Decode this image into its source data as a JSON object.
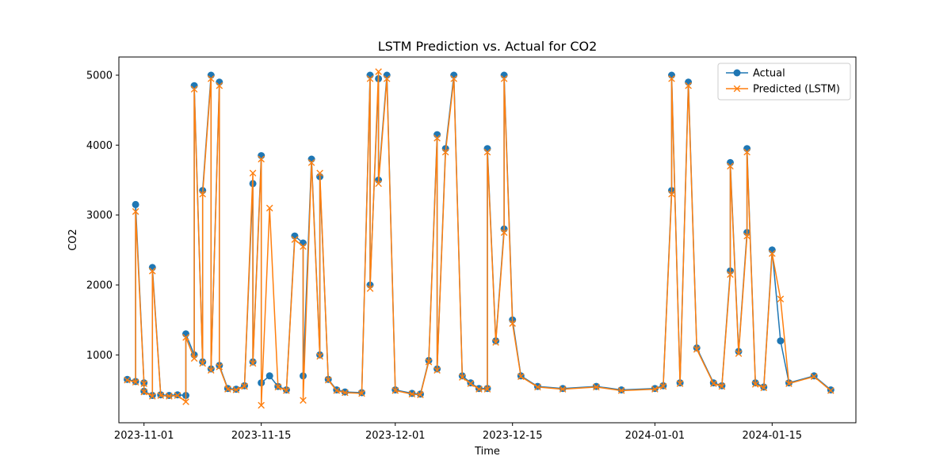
{
  "chart_data": {
    "type": "line",
    "title": "LSTM Prediction vs. Actual for CO2",
    "xlabel": "Time",
    "ylabel": "CO2",
    "x_axis": {
      "type": "date",
      "range": [
        "2023-10-29",
        "2024-01-25"
      ],
      "ticks": [
        "2023-11-01",
        "2023-11-15",
        "2023-12-01",
        "2023-12-15",
        "2024-01-01",
        "2024-01-15"
      ]
    },
    "y_axis": {
      "range": [
        30,
        5260
      ],
      "ticks": [
        1000,
        2000,
        3000,
        4000,
        5000
      ]
    },
    "grid": false,
    "legend_position": "top-right",
    "series": [
      {
        "name": "Actual",
        "color": "#1f77b4",
        "marker": "circle",
        "x": [
          "2023-10-30",
          "2023-10-31",
          "2023-10-31",
          "2023-11-01",
          "2023-11-01",
          "2023-11-02",
          "2023-11-02",
          "2023-11-03",
          "2023-11-04",
          "2023-11-05",
          "2023-11-06",
          "2023-11-06",
          "2023-11-07",
          "2023-11-07",
          "2023-11-08",
          "2023-11-08",
          "2023-11-09",
          "2023-11-09",
          "2023-11-10",
          "2023-11-10",
          "2023-11-11",
          "2023-11-12",
          "2023-11-13",
          "2023-11-14",
          "2023-11-14",
          "2023-11-15",
          "2023-11-15",
          "2023-11-16",
          "2023-11-17",
          "2023-11-18",
          "2023-11-19",
          "2023-11-20",
          "2023-11-20",
          "2023-11-21",
          "2023-11-22",
          "2023-11-22",
          "2023-11-23",
          "2023-11-24",
          "2023-11-25",
          "2023-11-27",
          "2023-11-28",
          "2023-11-28",
          "2023-11-29",
          "2023-11-29",
          "2023-11-30",
          "2023-12-01",
          "2023-12-03",
          "2023-12-04",
          "2023-12-05",
          "2023-12-06",
          "2023-12-06",
          "2023-12-07",
          "2023-12-08",
          "2023-12-09",
          "2023-12-10",
          "2023-12-11",
          "2023-12-12",
          "2023-12-12",
          "2023-12-13",
          "2023-12-14",
          "2023-12-14",
          "2023-12-15",
          "2023-12-16",
          "2023-12-18",
          "2023-12-21",
          "2023-12-25",
          "2023-12-28",
          "2024-01-01",
          "2024-01-02",
          "2024-01-03",
          "2024-01-03",
          "2024-01-04",
          "2024-01-05",
          "2024-01-06",
          "2024-01-08",
          "2024-01-09",
          "2024-01-10",
          "2024-01-10",
          "2024-01-11",
          "2024-01-12",
          "2024-01-12",
          "2024-01-13",
          "2024-01-14",
          "2024-01-15",
          "2024-01-16",
          "2024-01-17",
          "2024-01-20",
          "2024-01-22"
        ],
        "y": [
          650,
          620,
          3150,
          600,
          480,
          420,
          2250,
          430,
          420,
          430,
          420,
          1300,
          1000,
          4850,
          900,
          3350,
          5000,
          800,
          4900,
          850,
          520,
          510,
          560,
          3450,
          900,
          3850,
          600,
          700,
          550,
          500,
          2700,
          2600,
          700,
          3800,
          1000,
          3550,
          650,
          500,
          470,
          460,
          5000,
          2000,
          4950,
          3500,
          5000,
          500,
          450,
          440,
          920,
          4150,
          800,
          3950,
          5000,
          700,
          600,
          520,
          520,
          3950,
          1200,
          2800,
          5000,
          1500,
          700,
          550,
          520,
          550,
          500,
          520,
          560,
          3350,
          5000,
          600,
          4900,
          1100,
          600,
          560,
          2200,
          3750,
          1050,
          2750,
          3950,
          600,
          540,
          2500,
          1200,
          600,
          700,
          500
        ]
      },
      {
        "name": "Predicted (LSTM)",
        "color": "#ff7f0e",
        "marker": "x",
        "x": [
          "2023-10-30",
          "2023-10-31",
          "2023-10-31",
          "2023-11-01",
          "2023-11-01",
          "2023-11-02",
          "2023-11-02",
          "2023-11-03",
          "2023-11-04",
          "2023-11-05",
          "2023-11-06",
          "2023-11-06",
          "2023-11-07",
          "2023-11-07",
          "2023-11-08",
          "2023-11-08",
          "2023-11-09",
          "2023-11-09",
          "2023-11-10",
          "2023-11-10",
          "2023-11-11",
          "2023-11-12",
          "2023-11-13",
          "2023-11-14",
          "2023-11-14",
          "2023-11-15",
          "2023-11-15",
          "2023-11-16",
          "2023-11-17",
          "2023-11-18",
          "2023-11-19",
          "2023-11-20",
          "2023-11-20",
          "2023-11-21",
          "2023-11-22",
          "2023-11-22",
          "2023-11-23",
          "2023-11-24",
          "2023-11-25",
          "2023-11-27",
          "2023-11-28",
          "2023-11-28",
          "2023-11-29",
          "2023-11-29",
          "2023-11-30",
          "2023-12-01",
          "2023-12-03",
          "2023-12-04",
          "2023-12-05",
          "2023-12-06",
          "2023-12-06",
          "2023-12-07",
          "2023-12-08",
          "2023-12-09",
          "2023-12-10",
          "2023-12-11",
          "2023-12-12",
          "2023-12-12",
          "2023-12-13",
          "2023-12-14",
          "2023-12-14",
          "2023-12-15",
          "2023-12-16",
          "2023-12-18",
          "2023-12-21",
          "2023-12-25",
          "2023-12-28",
          "2024-01-01",
          "2024-01-02",
          "2024-01-03",
          "2024-01-03",
          "2024-01-04",
          "2024-01-05",
          "2024-01-06",
          "2024-01-08",
          "2024-01-09",
          "2024-01-10",
          "2024-01-10",
          "2024-01-11",
          "2024-01-12",
          "2024-01-12",
          "2024-01-13",
          "2024-01-14",
          "2024-01-15",
          "2024-01-16",
          "2024-01-17",
          "2024-01-20",
          "2024-01-22"
        ],
        "y": [
          640,
          610,
          3050,
          590,
          470,
          410,
          2200,
          420,
          410,
          420,
          330,
          1250,
          950,
          4800,
          880,
          3300,
          4950,
          780,
          4850,
          830,
          510,
          500,
          550,
          3600,
          880,
          3800,
          280,
          3100,
          540,
          490,
          2650,
          2550,
          350,
          3750,
          980,
          3600,
          640,
          490,
          460,
          450,
          4950,
          1950,
          5050,
          3450,
          4950,
          490,
          440,
          430,
          900,
          4100,
          780,
          3900,
          4950,
          680,
          590,
          510,
          510,
          3900,
          1180,
          2750,
          4950,
          1450,
          690,
          540,
          510,
          540,
          490,
          510,
          550,
          3300,
          4950,
          590,
          4850,
          1080,
          590,
          550,
          2150,
          3700,
          1020,
          2700,
          3900,
          580,
          530,
          2450,
          1800,
          590,
          690,
          490
        ]
      }
    ]
  }
}
